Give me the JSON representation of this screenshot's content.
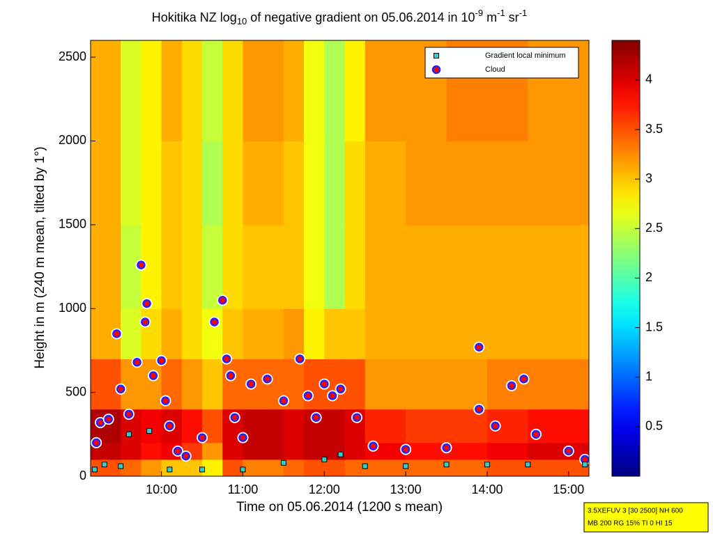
{
  "chart_data": {
    "type": "heatmap",
    "title": [
      "Hokitika NZ log",
      "10",
      " of negative gradient on 05.06.2014 in 10",
      "-9",
      " m",
      "-1",
      " sr",
      "-1"
    ],
    "x_label": "Time on 05.06.2014 (1200 s mean)",
    "y_label": "Height in m (240 m mean, tilted by 1°)",
    "xlim": [
      9.13,
      15.25
    ],
    "ylim": [
      0,
      2600
    ],
    "xticks": [
      {
        "value": 10,
        "label": "10:00"
      },
      {
        "value": 11,
        "label": "11:00"
      },
      {
        "value": 12,
        "label": "12:00"
      },
      {
        "value": 13,
        "label": "13:00"
      },
      {
        "value": 14,
        "label": "14:00"
      },
      {
        "value": 15,
        "label": "15:00"
      }
    ],
    "yticks": [
      0,
      500,
      1000,
      1500,
      2000,
      2500
    ],
    "colormap": "jet",
    "clim": [
      0,
      4.4
    ],
    "cticks": [
      0.5,
      1,
      1.5,
      2,
      2.5,
      3,
      3.5,
      4
    ],
    "heatmap": {
      "xbins": [
        9.13,
        9.5,
        9.75,
        10,
        10.25,
        10.5,
        10.75,
        11,
        11.5,
        11.75,
        12,
        12.25,
        12.5,
        13,
        13.5,
        14,
        14.5,
        15.25
      ],
      "ybins": [
        0,
        100,
        200,
        400,
        700,
        1000,
        1500,
        2000,
        2600
      ],
      "z": [
        [
          3.5,
          3.4,
          3.2,
          3.0,
          3.0,
          2.8,
          3.5,
          3.3,
          3.4,
          3.5,
          3.5,
          3.4,
          3.4,
          3.4,
          3.4,
          3.5,
          3.5
        ],
        [
          4.1,
          4.0,
          3.8,
          3.9,
          3.6,
          3.2,
          4.0,
          4.1,
          4.0,
          4.1,
          4.1,
          4.0,
          3.9,
          3.8,
          3.8,
          3.9,
          4.0
        ],
        [
          4.2,
          4.0,
          3.9,
          4.0,
          3.8,
          3.5,
          4.0,
          4.1,
          4.0,
          4.1,
          4.1,
          4.0,
          3.7,
          3.6,
          3.6,
          3.7,
          3.8
        ],
        [
          3.5,
          3.2,
          3.2,
          3.4,
          3.2,
          3.0,
          3.4,
          3.4,
          3.4,
          3.5,
          3.5,
          3.5,
          3.2,
          3.2,
          3.2,
          3.3,
          3.3
        ],
        [
          3.1,
          2.6,
          2.9,
          3.1,
          2.9,
          2.7,
          3.0,
          3.1,
          3.2,
          2.8,
          3.0,
          3.0,
          3.1,
          3.1,
          3.1,
          3.1,
          3.1
        ],
        [
          3.1,
          2.5,
          2.8,
          3.0,
          2.9,
          2.5,
          2.9,
          3.0,
          3.0,
          2.7,
          2.4,
          2.9,
          3.1,
          3.1,
          3.1,
          3.1,
          3.1
        ],
        [
          3.1,
          2.6,
          2.8,
          3.0,
          2.9,
          2.4,
          2.9,
          3.1,
          3.0,
          2.7,
          2.4,
          2.9,
          3.1,
          3.2,
          3.2,
          3.2,
          3.2
        ],
        [
          3.1,
          2.6,
          2.8,
          3.1,
          2.9,
          2.5,
          2.9,
          3.2,
          3.1,
          2.7,
          2.4,
          2.8,
          3.2,
          3.2,
          3.3,
          3.3,
          3.2
        ]
      ]
    },
    "series": [
      {
        "name": "Gradient local minimum",
        "color": "#33cccc",
        "marker": "square",
        "x": [
          9.18,
          9.3,
          9.5,
          9.6,
          9.85,
          10.1,
          10.5,
          11.0,
          11.5,
          12.0,
          12.2,
          12.5,
          13.0,
          13.5,
          14.0,
          14.5,
          15.2
        ],
        "values": [
          40,
          70,
          60,
          250,
          270,
          40,
          40,
          40,
          80,
          100,
          130,
          60,
          60,
          70,
          70,
          70,
          70
        ]
      },
      {
        "name": "Cloud",
        "color": "#ff0000",
        "marker": "circle",
        "x": [
          9.2,
          9.25,
          9.35,
          9.45,
          9.5,
          9.6,
          9.7,
          9.75,
          9.8,
          9.82,
          9.9,
          10.0,
          10.05,
          10.1,
          10.2,
          10.3,
          10.5,
          10.65,
          10.75,
          10.8,
          10.85,
          10.9,
          11.0,
          11.1,
          11.3,
          11.5,
          11.7,
          11.8,
          11.9,
          12.0,
          12.1,
          12.2,
          12.4,
          12.6,
          13.0,
          13.5,
          13.9,
          13.9,
          14.1,
          14.3,
          14.45,
          14.6,
          15.0,
          15.2
        ],
        "values": [
          200,
          320,
          340,
          850,
          520,
          370,
          680,
          1260,
          920,
          1030,
          600,
          690,
          450,
          300,
          150,
          120,
          230,
          920,
          1050,
          700,
          600,
          350,
          230,
          550,
          580,
          450,
          700,
          480,
          350,
          550,
          480,
          520,
          350,
          180,
          160,
          170,
          770,
          400,
          300,
          540,
          580,
          250,
          150,
          100
        ]
      }
    ],
    "legend": "upper right",
    "annotations": [
      "3.5XEFUV 3 [30 2500] NH 600",
      "MB 200 RG 15% TI 0 HI 15"
    ]
  }
}
